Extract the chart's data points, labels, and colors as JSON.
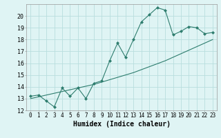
{
  "xlabel": "Humidex (Indice chaleur)",
  "ylabel": "",
  "x_values": [
    0,
    1,
    2,
    3,
    4,
    5,
    6,
    7,
    8,
    9,
    10,
    11,
    12,
    13,
    14,
    15,
    16,
    17,
    18,
    19,
    20,
    21,
    22,
    23
  ],
  "line1_y": [
    13.2,
    13.3,
    12.8,
    12.3,
    13.9,
    13.2,
    13.9,
    13.0,
    14.3,
    14.5,
    16.2,
    17.7,
    16.5,
    18.0,
    19.5,
    20.1,
    20.7,
    20.5,
    18.4,
    18.7,
    19.1,
    19.0,
    18.5,
    18.6
  ],
  "line2_y": [
    13.0,
    13.15,
    13.3,
    13.45,
    13.6,
    13.75,
    13.9,
    14.05,
    14.2,
    14.4,
    14.6,
    14.8,
    15.0,
    15.2,
    15.45,
    15.7,
    15.95,
    16.2,
    16.5,
    16.8,
    17.1,
    17.4,
    17.7,
    18.0
  ],
  "line_color": "#2e7d6e",
  "bg_color": "#dff4f4",
  "grid_color": "#b8dede",
  "ylim": [
    12,
    21
  ],
  "xlim": [
    -0.5,
    23.5
  ],
  "yticks": [
    12,
    13,
    14,
    15,
    16,
    17,
    18,
    19,
    20
  ],
  "xlabel_fontsize": 7,
  "tick_fontsize": 5.5
}
